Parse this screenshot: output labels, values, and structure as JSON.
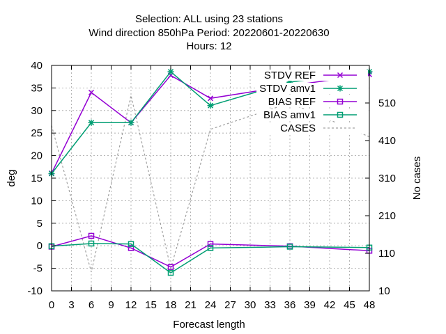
{
  "chart_data": {
    "type": "line",
    "title_lines": [
      "Selection: ALL using    23 stations",
      "Wind direction 850hPa   Period: 20220601-20220630",
      "Hours:  12"
    ],
    "xlabel": "Forecast length",
    "ylabel": "deg",
    "y2label": "No cases",
    "x": [
      0,
      6,
      12,
      18,
      24,
      36,
      48
    ],
    "xticks": [
      "0",
      "3",
      "6",
      "9",
      "12",
      "15",
      "18",
      "21",
      "24",
      "27",
      "30",
      "33",
      "36",
      "39",
      "42",
      "45",
      "48"
    ],
    "xlim": [
      0,
      48
    ],
    "ylim": [
      -10,
      40
    ],
    "yticks": [
      "-10",
      "-5",
      "0",
      "5",
      "10",
      "15",
      "20",
      "25",
      "30",
      "35",
      "40"
    ],
    "y2lim": [
      10,
      610
    ],
    "y2ticks": [
      "10",
      "110",
      "210",
      "310",
      "410",
      "510"
    ],
    "grid": true,
    "legend_position": "top-right",
    "series": [
      {
        "name": "STDV REF",
        "axis": "left",
        "color": "#9400d3",
        "marker": "cross",
        "dash": false,
        "values": [
          16.1,
          34.0,
          27.3,
          37.8,
          32.7,
          35.5,
          38.0
        ]
      },
      {
        "name": "STDV amv1",
        "axis": "left",
        "color": "#009e73",
        "marker": "star",
        "dash": false,
        "values": [
          16.0,
          27.3,
          27.3,
          38.6,
          31.1,
          36.3,
          38.6
        ]
      },
      {
        "name": "BIAS REF",
        "axis": "left",
        "color": "#9400d3",
        "marker": "square",
        "dash": false,
        "values": [
          -0.2,
          2.2,
          -0.5,
          -4.7,
          0.4,
          -0.1,
          -1.1
        ]
      },
      {
        "name": "BIAS amv1",
        "axis": "left",
        "color": "#009e73",
        "marker": "square",
        "dash": false,
        "values": [
          -0.1,
          0.5,
          0.4,
          -6.0,
          -0.5,
          -0.2,
          -0.4
        ]
      },
      {
        "name": "CASES",
        "axis": "right",
        "color": "#a0a0a0",
        "marker": "none",
        "dash": true,
        "values": [
          450,
          60,
          530,
          70,
          440,
          510,
          420
        ]
      }
    ]
  }
}
